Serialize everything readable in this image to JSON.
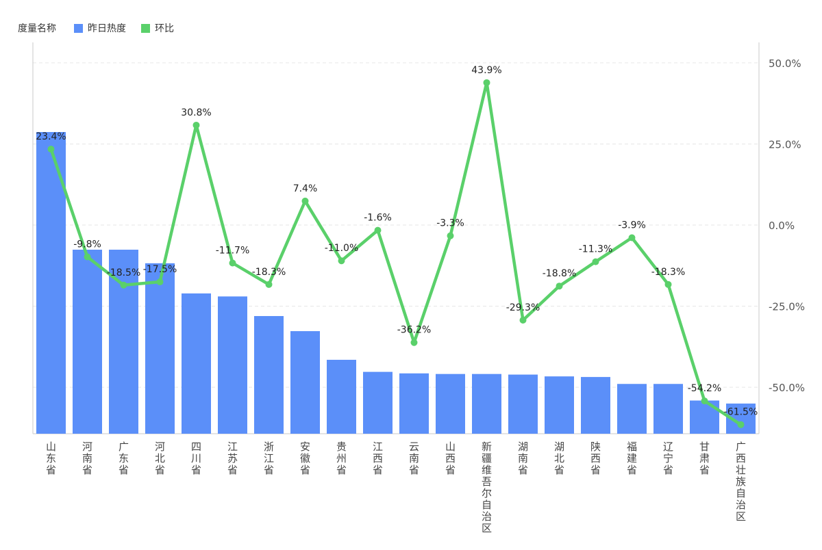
{
  "legend": {
    "title": "度量名称",
    "items": [
      {
        "label": "昨日热度",
        "color": "#5B8FF9"
      },
      {
        "label": "环比",
        "color": "#5AD06A"
      }
    ]
  },
  "chart_data": {
    "type": "bar",
    "categories": [
      "山东省",
      "河南省",
      "广东省",
      "河北省",
      "四川省",
      "江苏省",
      "浙江省",
      "安徽省",
      "贵州省",
      "江西省",
      "云南省",
      "山西省",
      "新疆维吾尔自治区",
      "湖南省",
      "湖北省",
      "陕西省",
      "福建省",
      "辽宁省",
      "甘肃省",
      "广西壮族自治区"
    ],
    "series": [
      {
        "name": "昨日热度",
        "type": "bar",
        "color": "#5B8FF9",
        "values": [
          100,
          61,
          61,
          56.5,
          46.5,
          45.5,
          39,
          34,
          24.5,
          20.5,
          20,
          19.8,
          19.8,
          19.6,
          19,
          18.8,
          16.5,
          16.5,
          11,
          10
        ]
      },
      {
        "name": "环比",
        "type": "line",
        "axis": "right",
        "color": "#5AD06A",
        "values": [
          23.4,
          -9.8,
          -18.5,
          -17.5,
          30.8,
          -11.7,
          -18.3,
          7.4,
          -11.0,
          -1.6,
          -36.2,
          -3.3,
          43.9,
          -29.3,
          -18.8,
          -11.3,
          -3.9,
          -18.3,
          -54.2,
          -61.5
        ],
        "labels": [
          "23.4%",
          "-9.8%",
          "-18.5%",
          "-17.5%",
          "30.8%",
          "-11.7%",
          "-18.3%",
          "7.4%",
          "-11.0%",
          "-1.6%",
          "-36.2%",
          "-3.3%",
          "43.9%",
          "-29.3%",
          "-18.8%",
          "-11.3%",
          "-3.9%",
          "-18.3%",
          "-54.2%",
          "-61.5%"
        ]
      }
    ],
    "left_axis": {
      "ylim": [
        0,
        100
      ],
      "tick_labels_shown": false
    },
    "right_axis": {
      "ylim": [
        -64.3,
        56.3
      ],
      "ticks": [
        50,
        25,
        0,
        -25,
        -50
      ],
      "tick_labels": [
        "50.0%",
        "25.0%",
        "0.0%",
        "-25.0%",
        "-50.0%"
      ]
    },
    "grid": true,
    "legend_position": "top-left"
  }
}
